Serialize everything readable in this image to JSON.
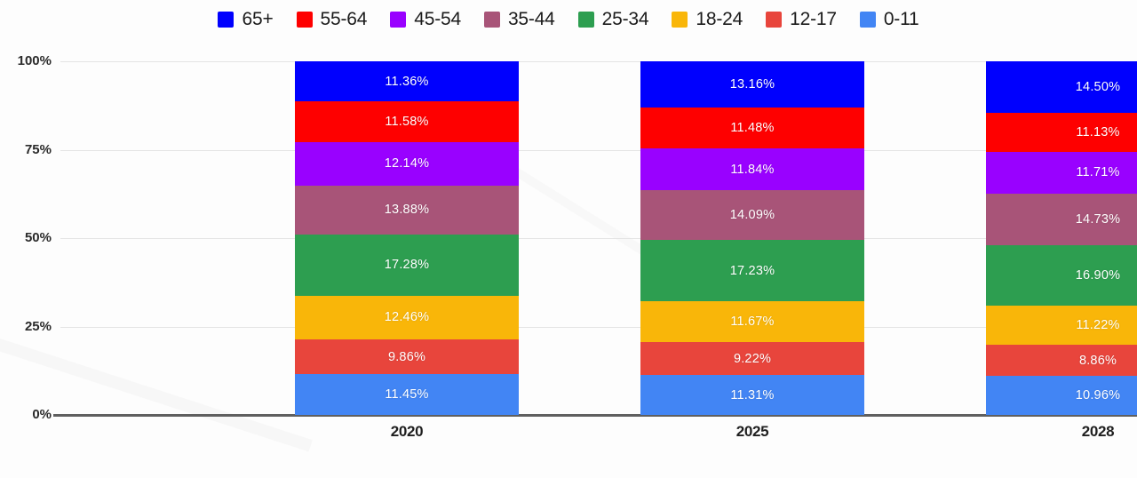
{
  "chart_data": {
    "type": "bar",
    "subtype": "stacked-100-percent",
    "title": "",
    "xlabel": "",
    "ylabel": "",
    "categories": [
      "2020",
      "2025",
      "2028"
    ],
    "series": [
      {
        "name": "65+",
        "color": "#0000FE",
        "values": [
          11.36,
          13.16,
          14.5
        ]
      },
      {
        "name": "55-64",
        "color": "#FE0000",
        "values": [
          11.58,
          11.48,
          11.13
        ]
      },
      {
        "name": "45-54",
        "color": "#9901FF",
        "values": [
          12.14,
          11.84,
          11.71
        ]
      },
      {
        "name": "35-44",
        "color": "#A85478",
        "values": [
          13.88,
          14.09,
          14.73
        ]
      },
      {
        "name": "25-34",
        "color": "#2D9E50",
        "values": [
          17.28,
          17.23,
          16.9
        ]
      },
      {
        "name": "18-24",
        "color": "#F9B609",
        "values": [
          12.46,
          11.67,
          11.22
        ]
      },
      {
        "name": "12-17",
        "color": "#E8453C",
        "values": [
          9.86,
          9.22,
          8.86
        ]
      },
      {
        "name": "0-11",
        "color": "#4285F4",
        "values": [
          11.45,
          11.31,
          10.96
        ]
      }
    ],
    "value_labels": [
      [
        "11.36%",
        "13.16%",
        "14.50%"
      ],
      [
        "11.58%",
        "11.48%",
        "11.13%"
      ],
      [
        "12.14%",
        "11.84%",
        "11.71%"
      ],
      [
        "13.88%",
        "14.09%",
        "14.73%"
      ],
      [
        "17.28%",
        "17.23%",
        "16.90%"
      ],
      [
        "12.46%",
        "11.67%",
        "11.22%"
      ],
      [
        "9.86%",
        "9.22%",
        "8.86%"
      ],
      [
        "11.45%",
        "11.31%",
        "10.96%"
      ]
    ],
    "y_ticks": [
      {
        "label": "100%",
        "value": 100
      },
      {
        "label": "75%",
        "value": 75
      },
      {
        "label": "50%",
        "value": 50
      },
      {
        "label": "25%",
        "value": 25
      },
      {
        "label": "0%",
        "value": 0
      }
    ],
    "ylim": [
      0,
      100
    ],
    "grid": true,
    "legend_position": "top",
    "stack_order_top_to_bottom": [
      "65+",
      "55-64",
      "45-54",
      "35-44",
      "25-34",
      "18-24",
      "12-17",
      "0-11"
    ]
  },
  "colors": {
    "gridline": "#e4e4e4",
    "axis_line": "#5f5f5f",
    "value_label_text": "#ffffff",
    "tick_label_text": "#2b2b2b",
    "legend_text": "#1b1b1b",
    "background": "#fdfdfd"
  }
}
